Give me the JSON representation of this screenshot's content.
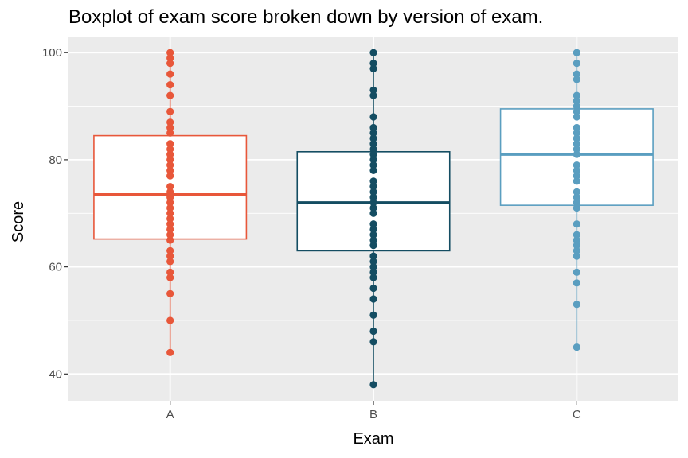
{
  "chart_data": {
    "type": "boxplot",
    "title": "Boxplot of exam score broken down by version of exam.",
    "xlabel": "Exam",
    "ylabel": "Score",
    "ylim": [
      35,
      103
    ],
    "yticks": [
      40,
      60,
      80,
      100
    ],
    "grid": true,
    "categories": [
      "A",
      "B",
      "C"
    ],
    "boxes": [
      {
        "category": "A",
        "color": "#e8573a",
        "q1": 65.2,
        "median": 73.5,
        "q3": 84.5,
        "whisker_low": 44,
        "whisker_high": 100,
        "points": [
          100,
          99,
          98,
          96,
          94,
          92,
          89,
          87,
          86,
          85,
          83,
          82,
          81,
          80,
          79,
          78,
          77,
          75,
          74,
          73,
          72,
          71,
          70,
          69,
          68,
          67,
          66,
          65,
          63,
          62,
          61,
          59,
          58,
          55,
          50,
          44
        ]
      },
      {
        "category": "B",
        "color": "#144d62",
        "q1": 63,
        "median": 72,
        "q3": 81.5,
        "whisker_low": 38,
        "whisker_high": 100,
        "points": [
          100,
          98,
          97,
          93,
          92,
          88,
          86,
          85,
          84,
          83,
          82,
          81,
          80,
          79,
          78,
          76,
          75,
          74,
          73,
          72,
          71,
          70,
          68,
          67,
          66,
          65,
          64,
          62,
          61,
          60,
          59,
          58,
          56,
          54,
          51,
          48,
          46,
          38
        ]
      },
      {
        "category": "C",
        "color": "#5a9ec0",
        "q1": 71.5,
        "median": 81,
        "q3": 89.5,
        "whisker_low": 45,
        "whisker_high": 100,
        "points": [
          100,
          98,
          96,
          95,
          92,
          91,
          90,
          89,
          88,
          86,
          85,
          84,
          83,
          82,
          81,
          79,
          78,
          77,
          76,
          74,
          73,
          72,
          71,
          68,
          66,
          65,
          64,
          63,
          62,
          59,
          57,
          53,
          45
        ]
      }
    ]
  }
}
